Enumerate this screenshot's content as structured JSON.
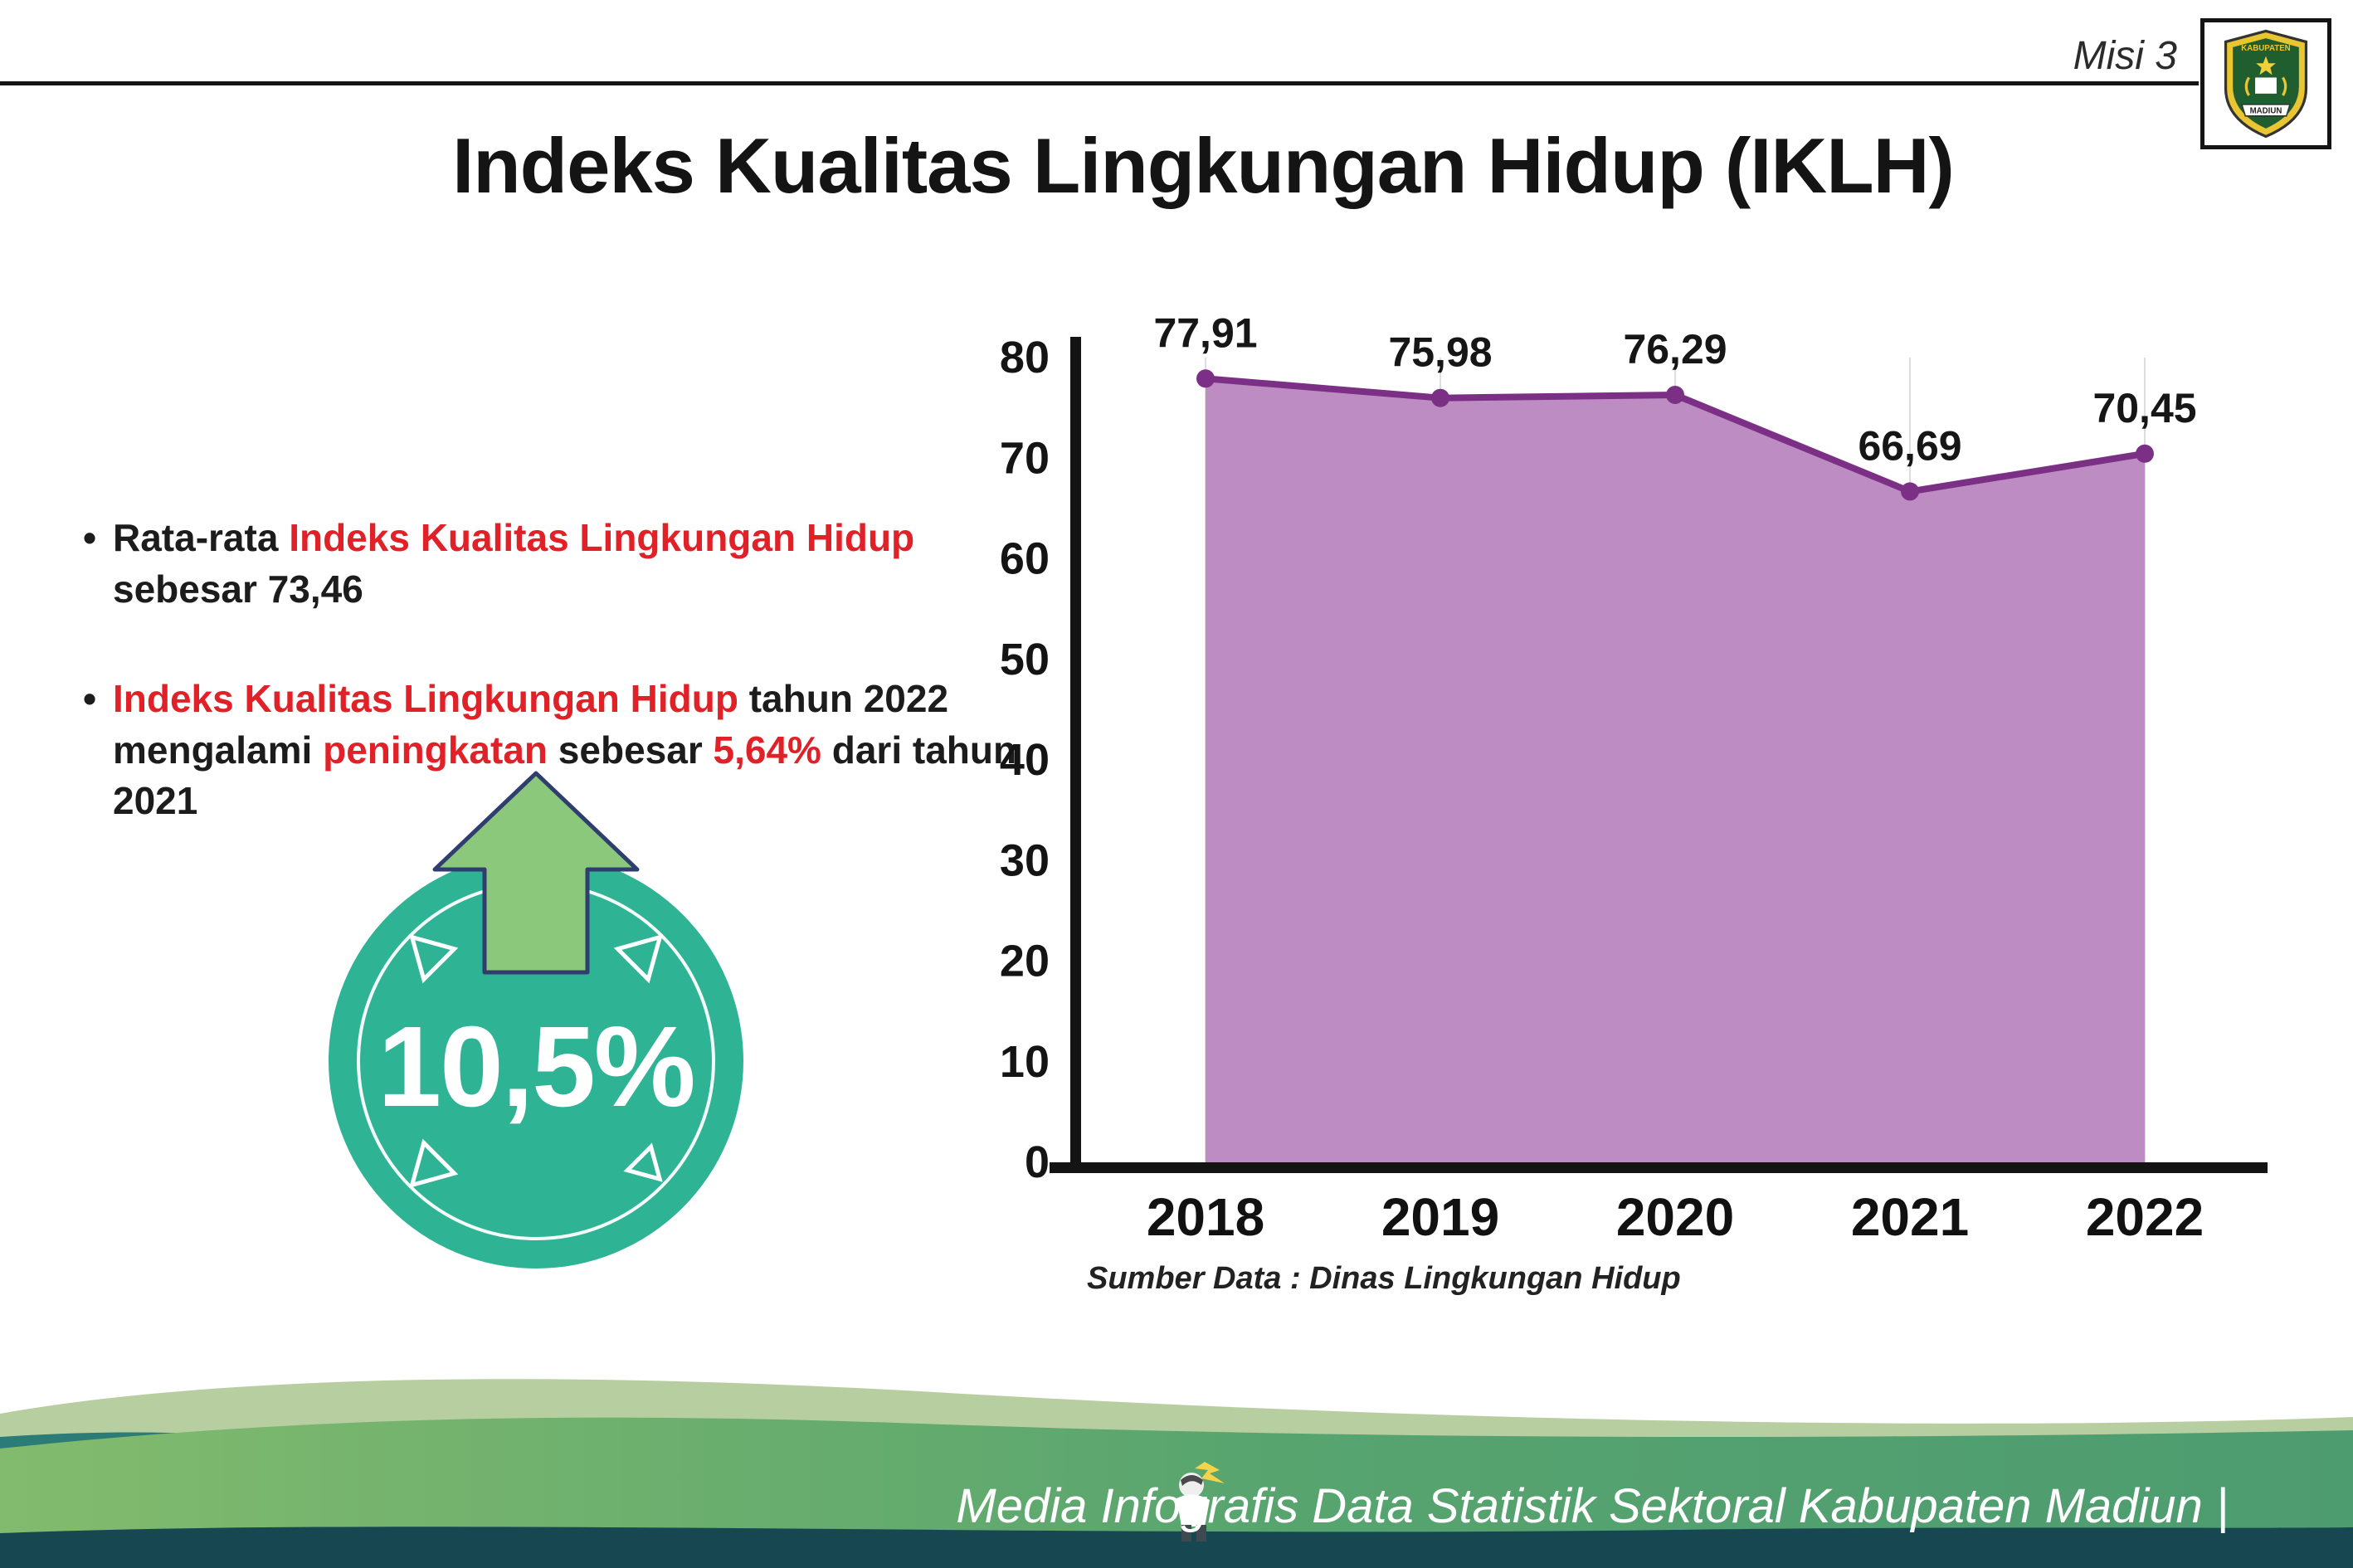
{
  "header": {
    "misi_label": "Misi 3",
    "title": "Indeks Kualitas Lingkungan Hidup (IKLH)"
  },
  "logo": {
    "top_text": "KABUPATEN",
    "bottom_text": "MADIUN"
  },
  "bullets": {
    "b1": {
      "seg1": "Rata-rata ",
      "seg2": "Indeks Kualitas Lingkungan Hidup",
      "seg3": " sebesar 73,46"
    },
    "b2": {
      "seg1": "Indeks Kualitas Lingkungan Hidup",
      "seg2": " tahun 2022 mengalami ",
      "seg3": "peningkatan",
      "seg4": " sebesar ",
      "seg5": "5,64%",
      "seg6": " dari tahun 2021"
    }
  },
  "badge": {
    "value": "10,5%"
  },
  "chart_data": {
    "type": "area",
    "title": "",
    "xlabel": "",
    "ylabel": "",
    "categories": [
      "2018",
      "2019",
      "2020",
      "2021",
      "2022"
    ],
    "values": [
      77.91,
      75.98,
      76.29,
      66.69,
      70.45
    ],
    "value_labels": [
      "77,91",
      "75,98",
      "76,29",
      "66,69",
      "70,45"
    ],
    "ylim": [
      0,
      80
    ],
    "yticks": [
      0,
      10,
      20,
      30,
      40,
      50,
      60,
      70,
      80
    ],
    "grid": "light-vertical",
    "legend": "none",
    "fill_color": "#bd8cc3",
    "line_color": "#7b2f85"
  },
  "source": "Sumber Data : Dinas Lingkungan Hidup",
  "footer": {
    "text": "Media Infografis Data Statistik Sektoral Kabupaten Madiun |"
  },
  "colors": {
    "accent_red": "#e02128",
    "badge_teal": "#2eb494",
    "arrow_green": "#8cc87c",
    "area_fill": "#bd8cc3",
    "area_line": "#7b2f85"
  }
}
